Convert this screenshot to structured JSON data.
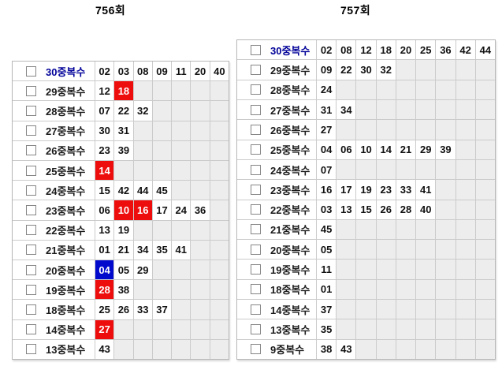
{
  "colors": {
    "red_highlight": "#ee0d0d",
    "blue_highlight": "#0009cc",
    "navy_label": "#000099",
    "empty_cell": "#ededed",
    "grid_line": "#cbcbcb",
    "number_text": "#111111"
  },
  "tables": [
    {
      "title": "756회",
      "columns": 7,
      "rows": [
        {
          "label": "30중복수",
          "label_color": "navy",
          "cells": [
            {
              "v": "02"
            },
            {
              "v": "03"
            },
            {
              "v": "08"
            },
            {
              "v": "09"
            },
            {
              "v": "11"
            },
            {
              "v": "20"
            },
            {
              "v": "40"
            }
          ]
        },
        {
          "label": "29중복수",
          "cells": [
            {
              "v": "12"
            },
            {
              "v": "18",
              "hl": "red"
            }
          ]
        },
        {
          "label": "28중복수",
          "cells": [
            {
              "v": "07"
            },
            {
              "v": "22"
            },
            {
              "v": "32"
            }
          ]
        },
        {
          "label": "27중복수",
          "cells": [
            {
              "v": "30"
            },
            {
              "v": "31"
            }
          ]
        },
        {
          "label": "26중복수",
          "cells": [
            {
              "v": "23"
            },
            {
              "v": "39"
            }
          ]
        },
        {
          "label": "25중복수",
          "cells": [
            {
              "v": "14",
              "hl": "red"
            }
          ]
        },
        {
          "label": "24중복수",
          "cells": [
            {
              "v": "15"
            },
            {
              "v": "42"
            },
            {
              "v": "44"
            },
            {
              "v": "45"
            }
          ]
        },
        {
          "label": "23중복수",
          "cells": [
            {
              "v": "06"
            },
            {
              "v": "10",
              "hl": "red"
            },
            {
              "v": "16",
              "hl": "red"
            },
            {
              "v": "17"
            },
            {
              "v": "24"
            },
            {
              "v": "36"
            }
          ]
        },
        {
          "label": "22중복수",
          "cells": [
            {
              "v": "13"
            },
            {
              "v": "19"
            }
          ]
        },
        {
          "label": "21중복수",
          "cells": [
            {
              "v": "01"
            },
            {
              "v": "21"
            },
            {
              "v": "34"
            },
            {
              "v": "35"
            },
            {
              "v": "41"
            }
          ]
        },
        {
          "label": "20중복수",
          "cells": [
            {
              "v": "04",
              "hl": "blue"
            },
            {
              "v": "05"
            },
            {
              "v": "29"
            }
          ]
        },
        {
          "label": "19중복수",
          "cells": [
            {
              "v": "28",
              "hl": "red"
            },
            {
              "v": "38"
            }
          ]
        },
        {
          "label": "18중복수",
          "cells": [
            {
              "v": "25"
            },
            {
              "v": "26"
            },
            {
              "v": "33"
            },
            {
              "v": "37"
            }
          ]
        },
        {
          "label": "14중복수",
          "cells": [
            {
              "v": "27",
              "hl": "red"
            }
          ]
        },
        {
          "label": "13중복수",
          "cells": [
            {
              "v": "43"
            }
          ]
        }
      ]
    },
    {
      "title": "757회",
      "columns": 9,
      "rows": [
        {
          "label": "30중복수",
          "label_color": "navy",
          "cells": [
            {
              "v": "02"
            },
            {
              "v": "08"
            },
            {
              "v": "12"
            },
            {
              "v": "18"
            },
            {
              "v": "20"
            },
            {
              "v": "25"
            },
            {
              "v": "36"
            },
            {
              "v": "42"
            },
            {
              "v": "44"
            }
          ]
        },
        {
          "label": "29중복수",
          "cells": [
            {
              "v": "09"
            },
            {
              "v": "22"
            },
            {
              "v": "30"
            },
            {
              "v": "32"
            }
          ]
        },
        {
          "label": "28중복수",
          "cells": [
            {
              "v": "24"
            }
          ]
        },
        {
          "label": "27중복수",
          "cells": [
            {
              "v": "31"
            },
            {
              "v": "34"
            }
          ]
        },
        {
          "label": "26중복수",
          "cells": [
            {
              "v": "27"
            }
          ]
        },
        {
          "label": "25중복수",
          "cells": [
            {
              "v": "04"
            },
            {
              "v": "06"
            },
            {
              "v": "10"
            },
            {
              "v": "14"
            },
            {
              "v": "21"
            },
            {
              "v": "29"
            },
            {
              "v": "39"
            }
          ]
        },
        {
          "label": "24중복수",
          "cells": [
            {
              "v": "07"
            }
          ]
        },
        {
          "label": "23중복수",
          "cells": [
            {
              "v": "16"
            },
            {
              "v": "17"
            },
            {
              "v": "19"
            },
            {
              "v": "23"
            },
            {
              "v": "33"
            },
            {
              "v": "41"
            }
          ]
        },
        {
          "label": "22중복수",
          "cells": [
            {
              "v": "03"
            },
            {
              "v": "13"
            },
            {
              "v": "15"
            },
            {
              "v": "26"
            },
            {
              "v": "28"
            },
            {
              "v": "40"
            }
          ]
        },
        {
          "label": "21중복수",
          "cells": [
            {
              "v": "45"
            }
          ]
        },
        {
          "label": "20중복수",
          "cells": [
            {
              "v": "05"
            }
          ]
        },
        {
          "label": "19중복수",
          "cells": [
            {
              "v": "11"
            }
          ]
        },
        {
          "label": "18중복수",
          "cells": [
            {
              "v": "01"
            }
          ]
        },
        {
          "label": "14중복수",
          "cells": [
            {
              "v": "37"
            }
          ]
        },
        {
          "label": "13중복수",
          "cells": [
            {
              "v": "35"
            }
          ]
        },
        {
          "label": "9중복수",
          "cells": [
            {
              "v": "38"
            },
            {
              "v": "43"
            }
          ]
        }
      ]
    }
  ]
}
